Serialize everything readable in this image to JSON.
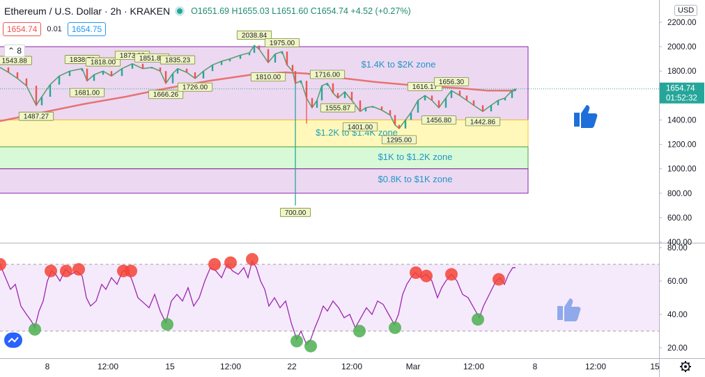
{
  "header": {
    "title": "Ethereum / U.S. Dollar · 2h · KRAKEN",
    "ohlc": "O1651.69 H1655.03 L1651.60 C1654.74 +4.52 (+0.27%)",
    "bid": "1654.74",
    "spread": "0.01",
    "ask": "1654.75",
    "indicator_toggle": "8",
    "currency": "USD",
    "last_price": "1654.74",
    "countdown": "01:52:32"
  },
  "colors": {
    "up": "#26a69a",
    "down": "#ef5350",
    "ma": "#e57373",
    "rsi": "#9c27b0",
    "zone_purple": "#e1bee7",
    "zone_yellow": "#fff59d",
    "zone_green": "#c8f7c5",
    "marker_red": "#f44336",
    "marker_green": "#4caf50",
    "thumb": "#1e6fd9"
  },
  "icons": [
    "thumbs-up-icon",
    "settings-gear-icon",
    "tradingview-logo-icon"
  ],
  "chart_data": [
    {
      "type": "candlestick",
      "title": "",
      "y_ticks": [
        "2200.00",
        "2000.00",
        "1800.00",
        "1600.00",
        "1400.00",
        "1200.00",
        "1000.00",
        "800.00",
        "600.00",
        "400.00"
      ],
      "ylim": [
        400,
        2240
      ],
      "x_ticks": [
        "8",
        "12:00",
        "15",
        "12:00",
        "22",
        "12:00",
        "Mar",
        "12:00",
        "8",
        "12:00",
        "15"
      ],
      "zones": [
        {
          "label": "$1.4K to $2K zone",
          "from": 1400,
          "to": 2000,
          "color": "purple"
        },
        {
          "label": "$1.2K to $1.4K zone",
          "from": 1180,
          "to": 1400,
          "color": "yellow"
        },
        {
          "label": "$1K to $1.2K zone",
          "from": 1000,
          "to": 1180,
          "color": "green"
        },
        {
          "label": "$0.8K to $1K zone",
          "from": 800,
          "to": 1000,
          "color": "purple"
        }
      ],
      "price_labels": [
        {
          "text": "1543.88",
          "t": 0,
          "v": 1830
        },
        {
          "text": "1487.27",
          "t": 52,
          "v": 1487
        },
        {
          "text": "1838.78",
          "t": 118,
          "v": 1838
        },
        {
          "text": "1818.00",
          "t": 148,
          "v": 1818
        },
        {
          "text": "1681.00",
          "t": 125,
          "v": 1681
        },
        {
          "text": "1873.08",
          "t": 190,
          "v": 1873
        },
        {
          "text": "1851.88",
          "t": 218,
          "v": 1851
        },
        {
          "text": "1835.23",
          "t": 255,
          "v": 1835
        },
        {
          "text": "1666.26",
          "t": 238,
          "v": 1666
        },
        {
          "text": "1726.00",
          "t": 280,
          "v": 1726
        },
        {
          "text": "2038.84",
          "t": 365,
          "v": 2038
        },
        {
          "text": "1975.00",
          "t": 405,
          "v": 1975
        },
        {
          "text": "1810.00",
          "t": 385,
          "v": 1810
        },
        {
          "text": "1716.00",
          "t": 470,
          "v": 1716
        },
        {
          "text": "1555.87",
          "t": 485,
          "v": 1556
        },
        {
          "text": "700.00",
          "t": 424,
          "v": 700
        },
        {
          "text": "1401.00",
          "t": 517,
          "v": 1401
        },
        {
          "text": "1295.00",
          "t": 573,
          "v": 1295
        },
        {
          "text": "1616.17",
          "t": 610,
          "v": 1616
        },
        {
          "text": "1656.30",
          "t": 648,
          "v": 1656
        },
        {
          "text": "1456.80",
          "t": 630,
          "v": 1456
        },
        {
          "text": "1442.86",
          "t": 693,
          "v": 1443
        }
      ],
      "price_series": [
        [
          0,
          1830
        ],
        [
          12,
          1790
        ],
        [
          25,
          1740
        ],
        [
          38,
          1680
        ],
        [
          52,
          1520
        ],
        [
          60,
          1590
        ],
        [
          72,
          1690
        ],
        [
          85,
          1760
        ],
        [
          100,
          1800
        ],
        [
          118,
          1820
        ],
        [
          125,
          1720
        ],
        [
          135,
          1770
        ],
        [
          148,
          1800
        ],
        [
          160,
          1760
        ],
        [
          175,
          1820
        ],
        [
          190,
          1860
        ],
        [
          205,
          1820
        ],
        [
          218,
          1830
        ],
        [
          230,
          1800
        ],
        [
          238,
          1700
        ],
        [
          248,
          1780
        ],
        [
          255,
          1820
        ],
        [
          268,
          1790
        ],
        [
          280,
          1740
        ],
        [
          292,
          1800
        ],
        [
          305,
          1850
        ],
        [
          318,
          1880
        ],
        [
          330,
          1900
        ],
        [
          345,
          1930
        ],
        [
          358,
          1950
        ],
        [
          365,
          2010
        ],
        [
          372,
          1980
        ],
        [
          385,
          1870
        ],
        [
          395,
          1940
        ],
        [
          405,
          1960
        ],
        [
          412,
          1850
        ],
        [
          420,
          1800
        ],
        [
          424,
          1700
        ],
        [
          432,
          1720
        ],
        [
          440,
          1580
        ],
        [
          448,
          1500
        ],
        [
          455,
          1560
        ],
        [
          462,
          1680
        ],
        [
          470,
          1700
        ],
        [
          478,
          1620
        ],
        [
          485,
          1580
        ],
        [
          495,
          1630
        ],
        [
          505,
          1560
        ],
        [
          517,
          1470
        ],
        [
          525,
          1500
        ],
        [
          535,
          1510
        ],
        [
          548,
          1480
        ],
        [
          560,
          1440
        ],
        [
          567,
          1360
        ],
        [
          573,
          1330
        ],
        [
          582,
          1400
        ],
        [
          590,
          1460
        ],
        [
          600,
          1560
        ],
        [
          610,
          1600
        ],
        [
          620,
          1560
        ],
        [
          630,
          1500
        ],
        [
          640,
          1580
        ],
        [
          648,
          1640
        ],
        [
          660,
          1600
        ],
        [
          670,
          1560
        ],
        [
          680,
          1520
        ],
        [
          693,
          1470
        ],
        [
          705,
          1520
        ],
        [
          715,
          1560
        ],
        [
          725,
          1580
        ],
        [
          735,
          1640
        ],
        [
          740,
          1654.74
        ]
      ],
      "moving_average": [
        [
          0,
          1390
        ],
        [
          60,
          1460
        ],
        [
          120,
          1530
        ],
        [
          180,
          1590
        ],
        [
          240,
          1660
        ],
        [
          300,
          1720
        ],
        [
          360,
          1770
        ],
        [
          410,
          1790
        ],
        [
          440,
          1780
        ],
        [
          480,
          1750
        ],
        [
          540,
          1710
        ],
        [
          600,
          1680
        ],
        [
          660,
          1660
        ],
        [
          700,
          1640
        ],
        [
          740,
          1640
        ]
      ],
      "candles": [
        {
          "t": 440,
          "o": 1640,
          "h": 1660,
          "l": 1370,
          "c": 1420
        }
      ],
      "wick_low": {
        "t": 424,
        "v": 700
      }
    },
    {
      "type": "line",
      "title": "",
      "y_ticks": [
        "80.00",
        "60.00",
        "40.00",
        "20.00"
      ],
      "ylim": [
        15,
        85
      ],
      "band": [
        30,
        70
      ],
      "series": [
        {
          "values": [
            [
              0,
              70
            ],
            [
              8,
              62
            ],
            [
              15,
              55
            ],
            [
              22,
              58
            ],
            [
              30,
              45
            ],
            [
              38,
              40
            ],
            [
              45,
              36
            ],
            [
              50,
              32
            ],
            [
              56,
              42
            ],
            [
              62,
              48
            ],
            [
              68,
              60
            ],
            [
              74,
              66
            ],
            [
              80,
              64
            ],
            [
              86,
              60
            ],
            [
              94,
              67
            ],
            [
              102,
              64
            ],
            [
              110,
              66
            ],
            [
              118,
              63
            ],
            [
              124,
              50
            ],
            [
              130,
              45
            ],
            [
              138,
              48
            ],
            [
              146,
              58
            ],
            [
              152,
              55
            ],
            [
              160,
              62
            ],
            [
              168,
              58
            ],
            [
              176,
              66
            ],
            [
              184,
              66
            ],
            [
              190,
              60
            ],
            [
              198,
              50
            ],
            [
              206,
              47
            ],
            [
              214,
              44
            ],
            [
              222,
              52
            ],
            [
              230,
              42
            ],
            [
              238,
              35
            ],
            [
              246,
              48
            ],
            [
              254,
              52
            ],
            [
              262,
              48
            ],
            [
              270,
              56
            ],
            [
              278,
              45
            ],
            [
              286,
              50
            ],
            [
              294,
              60
            ],
            [
              302,
              68
            ],
            [
              310,
              66
            ],
            [
              318,
              62
            ],
            [
              326,
              70
            ],
            [
              334,
              66
            ],
            [
              342,
              64
            ],
            [
              350,
              68
            ],
            [
              356,
              62
            ],
            [
              362,
              72
            ],
            [
              368,
              68
            ],
            [
              374,
              60
            ],
            [
              380,
              55
            ],
            [
              386,
              45
            ],
            [
              394,
              50
            ],
            [
              402,
              44
            ],
            [
              410,
              48
            ],
            [
              418,
              35
            ],
            [
              426,
              25
            ],
            [
              432,
              30
            ],
            [
              440,
              22
            ],
            [
              446,
              25
            ],
            [
              452,
              32
            ],
            [
              458,
              38
            ],
            [
              464,
              45
            ],
            [
              470,
              42
            ],
            [
              478,
              48
            ],
            [
              486,
              44
            ],
            [
              494,
              38
            ],
            [
              502,
              40
            ],
            [
              510,
              32
            ],
            [
              518,
              38
            ],
            [
              526,
              44
            ],
            [
              534,
              40
            ],
            [
              542,
              48
            ],
            [
              550,
              46
            ],
            [
              558,
              40
            ],
            [
              566,
              34
            ],
            [
              572,
              40
            ],
            [
              578,
              52
            ],
            [
              584,
              58
            ],
            [
              590,
              62
            ],
            [
              596,
              65
            ],
            [
              604,
              62
            ],
            [
              612,
              64
            ],
            [
              620,
              60
            ],
            [
              628,
              50
            ],
            [
              634,
              56
            ],
            [
              640,
              60
            ],
            [
              648,
              64
            ],
            [
              656,
              60
            ],
            [
              664,
              52
            ],
            [
              672,
              50
            ],
            [
              680,
              44
            ],
            [
              688,
              38
            ],
            [
              694,
              45
            ],
            [
              700,
              50
            ],
            [
              706,
              55
            ],
            [
              712,
              60
            ],
            [
              718,
              62
            ],
            [
              724,
              58
            ],
            [
              730,
              64
            ],
            [
              736,
              68
            ],
            [
              740,
              68
            ]
          ]
        }
      ],
      "markers_overbought": [
        [
          0,
          70
        ],
        [
          73,
          66
        ],
        [
          95,
          66
        ],
        [
          113,
          67
        ],
        [
          177,
          66
        ],
        [
          188,
          66
        ],
        [
          308,
          70
        ],
        [
          331,
          71
        ],
        [
          362,
          73
        ],
        [
          597,
          65
        ],
        [
          612,
          63
        ],
        [
          648,
          64
        ],
        [
          716,
          61
        ]
      ],
      "markers_oversold": [
        [
          50,
          31
        ],
        [
          240,
          34
        ],
        [
          426,
          24
        ],
        [
          446,
          21
        ],
        [
          516,
          30
        ],
        [
          567,
          32
        ],
        [
          686,
          37
        ]
      ]
    }
  ]
}
